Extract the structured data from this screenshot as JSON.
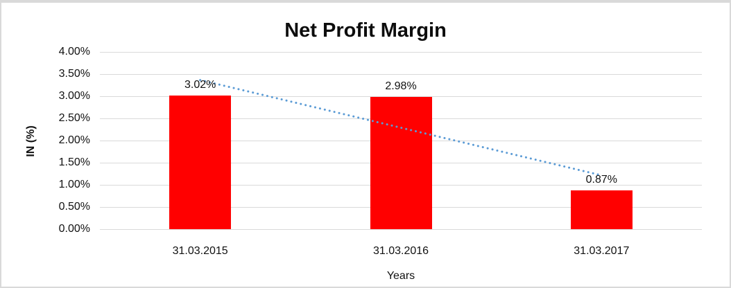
{
  "chart_data": {
    "type": "bar",
    "title": "Net Profit Margin",
    "categories": [
      "31.03.2015",
      "31.03.2016",
      "31.03.2017"
    ],
    "values": [
      3.02,
      2.98,
      0.87
    ],
    "data_labels": [
      "3.02%",
      "2.98%",
      "0.87%"
    ],
    "xlabel": "Years",
    "ylabel": "IN (%)",
    "ylim": [
      0,
      4
    ],
    "ytick_step": 0.5,
    "ytick_labels_top_to_bottom": [
      "4.00%",
      "3.50%",
      "3.00%",
      "2.50%",
      "2.00%",
      "1.50%",
      "1.00%",
      "0.50%",
      "0.00%"
    ],
    "grid": true,
    "legend": "none",
    "bar_color": "#FF0000",
    "gridline_color": "#D9D9D9",
    "frame_border_color": "#D9D9D9",
    "text_color": "#111111",
    "trendline": {
      "type": "linear",
      "style": "dotted",
      "color": "#5B9BD5"
    }
  }
}
